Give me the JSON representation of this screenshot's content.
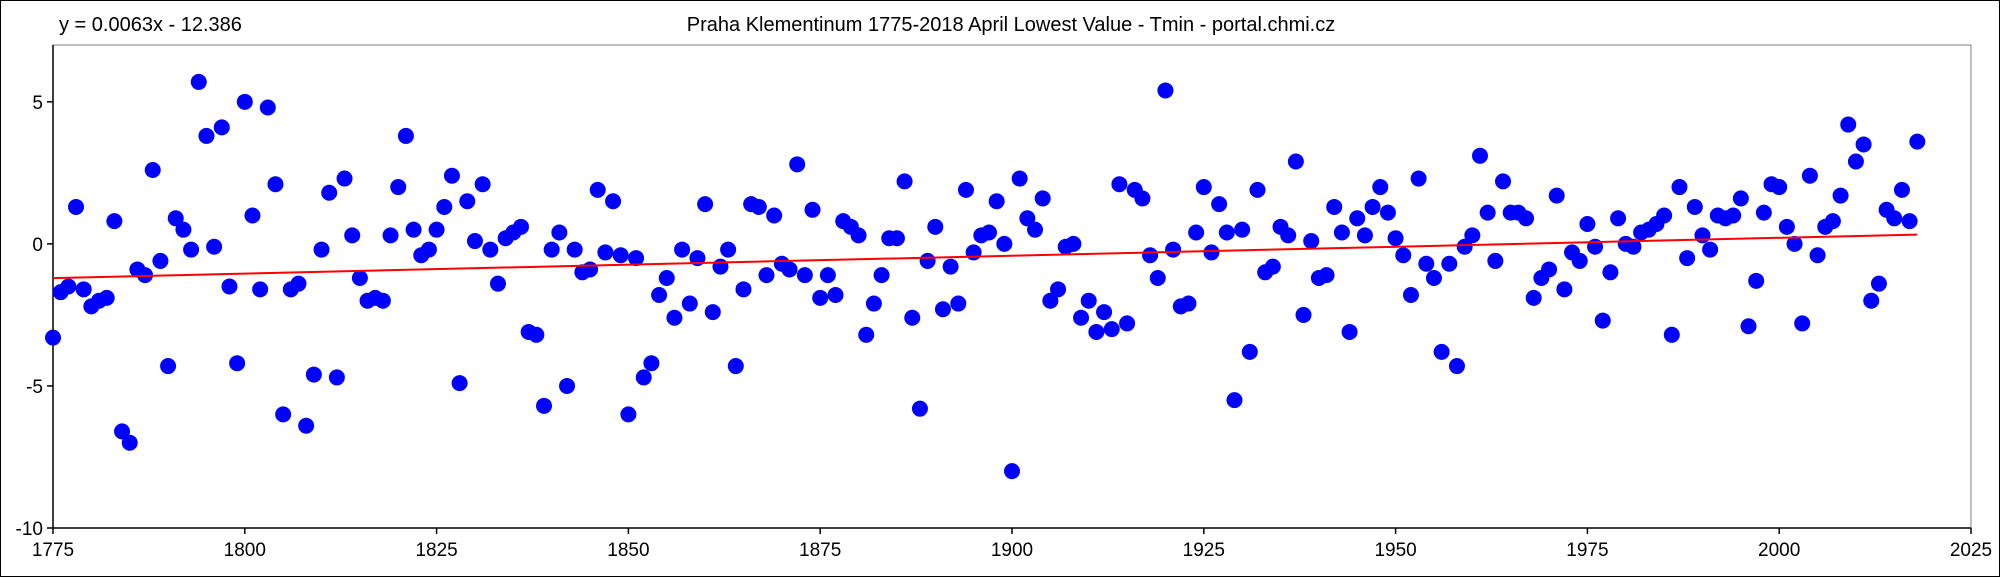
{
  "chart_data": {
    "type": "scatter",
    "title": "Praha Klementinum 1775-2018 April Lowest Value - Tmin - portal.chmi.cz",
    "equation": "y = 0.0063x - 12.386",
    "xlabel": "",
    "ylabel": "",
    "xlim": [
      1775,
      2025
    ],
    "ylim": [
      -10,
      7
    ],
    "xticks": [
      1775,
      1800,
      1825,
      1850,
      1875,
      1900,
      1925,
      1950,
      1975,
      2000,
      2025
    ],
    "yticks": [
      -10,
      -5,
      0,
      5
    ],
    "grid": false,
    "legend": "none",
    "colors": {
      "points": "#0000ff",
      "trendline": "#ff0000",
      "axes": "#000000"
    },
    "series": [
      {
        "x": [
          1775,
          1776,
          1777,
          1778,
          1779,
          1780,
          1781,
          1782,
          1783,
          1784,
          1785,
          1786,
          1787,
          1788,
          1789,
          1790,
          1791,
          1792,
          1793,
          1794,
          1795,
          1796,
          1797,
          1798,
          1799,
          1800,
          1801,
          1802,
          1803,
          1804,
          1805,
          1806,
          1807,
          1808,
          1809,
          1810,
          1811,
          1812,
          1813,
          1814,
          1815,
          1816,
          1817,
          1818,
          1819,
          1820,
          1821,
          1822,
          1823,
          1824,
          1825,
          1826,
          1827,
          1828,
          1829,
          1830,
          1831,
          1832,
          1833,
          1834,
          1835,
          1836,
          1837,
          1838,
          1839,
          1840,
          1841,
          1842,
          1843,
          1844,
          1845,
          1846,
          1847,
          1848,
          1849,
          1850,
          1851,
          1852,
          1853,
          1854,
          1855,
          1856,
          1857,
          1858,
          1859,
          1860,
          1861,
          1862,
          1863,
          1864,
          1865,
          1866,
          1867,
          1868,
          1869,
          1870,
          1871,
          1872,
          1873,
          1874,
          1875,
          1876,
          1877,
          1878,
          1879,
          1880,
          1881,
          1882,
          1883,
          1884,
          1885,
          1886,
          1887,
          1888,
          1889,
          1890,
          1891,
          1892,
          1893,
          1894,
          1895,
          1896,
          1897,
          1898,
          1899,
          1900,
          1901,
          1902,
          1903,
          1904,
          1905,
          1906,
          1907,
          1908,
          1909,
          1910,
          1911,
          1912,
          1913,
          1914,
          1915,
          1916,
          1917,
          1918,
          1919,
          1920,
          1921,
          1922,
          1923,
          1924,
          1925,
          1926,
          1927,
          1928,
          1929,
          1930,
          1931,
          1932,
          1933,
          1934,
          1935,
          1936,
          1937,
          1938,
          1939,
          1940,
          1941,
          1942,
          1943,
          1944,
          1945,
          1946,
          1947,
          1948,
          1949,
          1950,
          1951,
          1952,
          1953,
          1954,
          1955,
          1956,
          1957,
          1958,
          1959,
          1960,
          1961,
          1962,
          1963,
          1964,
          1965,
          1966,
          1967,
          1968,
          1969,
          1970,
          1971,
          1972,
          1973,
          1974,
          1975,
          1976,
          1977,
          1978,
          1979,
          1980,
          1981,
          1982,
          1983,
          1984,
          1985,
          1986,
          1987,
          1988,
          1989,
          1990,
          1991,
          1992,
          1993,
          1994,
          1995,
          1996,
          1997,
          1998,
          1999,
          2000,
          2001,
          2002,
          2003,
          2004,
          2005,
          2006,
          2007,
          2008,
          2009,
          2010,
          2011,
          2012,
          2013,
          2014,
          2015,
          2016,
          2017,
          2018
        ],
        "y": [
          -3.3,
          -1.7,
          -1.5,
          1.3,
          -1.6,
          -2.2,
          -2.0,
          -1.9,
          0.8,
          -6.6,
          -7.0,
          -0.9,
          -1.1,
          2.6,
          -0.6,
          -4.3,
          0.9,
          0.5,
          -0.2,
          5.7,
          3.8,
          -0.1,
          4.1,
          -1.5,
          -4.2,
          5.0,
          1.0,
          -1.6,
          4.8,
          2.1,
          -6.0,
          -1.6,
          -1.4,
          -6.4,
          -4.6,
          -0.2,
          1.8,
          -4.7,
          2.3,
          0.3,
          -1.2,
          -2.0,
          -1.9,
          -2.0,
          0.3,
          2.0,
          3.8,
          0.5,
          -0.4,
          -0.2,
          0.5,
          1.3,
          2.4,
          -4.9,
          1.5,
          0.1,
          2.1,
          -0.2,
          -1.4,
          0.2,
          0.4,
          0.6,
          -3.1,
          -3.2,
          -5.7,
          -0.2,
          0.4,
          -5.0,
          -0.2,
          -1.0,
          -0.9,
          1.9,
          -0.3,
          1.5,
          -0.4,
          -6.0,
          -0.5,
          -4.7,
          -4.2,
          -1.8,
          -1.2,
          -2.6,
          -0.2,
          -2.1,
          -0.5,
          1.4,
          -2.4,
          -0.8,
          -0.2,
          -4.3,
          -1.6,
          1.4,
          1.3,
          -1.1,
          1.0,
          -0.7,
          -0.9,
          2.8,
          -1.1,
          1.2,
          -1.9,
          -1.1,
          -1.8,
          0.8,
          0.6,
          0.3,
          -3.2,
          -2.1,
          -1.1,
          0.2,
          0.2,
          2.2,
          -2.6,
          -5.8,
          -0.6,
          0.6,
          -2.3,
          -0.8,
          -2.1,
          1.9,
          -0.3,
          0.3,
          0.4,
          1.5,
          0.0,
          -8.0,
          2.3,
          0.9,
          0.5,
          1.6,
          -2.0,
          -1.6,
          -0.1,
          0.0,
          -2.6,
          -2.0,
          -3.1,
          -2.4,
          -3.0,
          2.1,
          -2.8,
          1.9,
          1.6,
          -0.4,
          -1.2,
          5.4,
          -0.2,
          -2.2,
          -2.1,
          0.4,
          2.0,
          -0.3,
          1.4,
          0.4,
          -5.5,
          0.5,
          -3.8,
          1.9,
          -1.0,
          -0.8,
          0.6,
          0.3,
          2.9,
          -2.5,
          0.1,
          -1.2,
          -1.1,
          1.3,
          0.4,
          -3.1,
          0.9,
          0.3,
          1.3,
          2.0,
          1.1,
          0.2,
          -0.4,
          -1.8,
          2.3,
          -0.7,
          -1.2,
          -3.8,
          -0.7,
          -4.3,
          -0.1,
          0.3,
          3.1,
          1.1,
          -0.6,
          2.2,
          1.1,
          1.1,
          0.9,
          -1.9,
          -1.2,
          -0.9,
          1.7,
          -1.6,
          -0.3,
          -0.6,
          0.7,
          -0.1,
          -2.7,
          -1.0,
          0.9,
          0.0,
          -0.1,
          0.4,
          0.5,
          0.7,
          1.0,
          -3.2,
          2.0,
          -0.5,
          1.3,
          0.3,
          -0.2,
          1.0,
          0.9,
          1.0,
          1.6,
          -2.9,
          -1.3,
          1.1,
          2.1,
          2.0,
          0.6,
          0.0,
          -2.8,
          2.4,
          -0.4,
          0.6,
          0.8,
          1.7,
          4.2,
          2.9,
          3.5,
          -2.0,
          -1.4,
          1.2,
          0.9,
          1.9,
          0.8,
          3.6
        ]
      }
    ],
    "trendline": {
      "slope": 0.0063,
      "intercept": -12.386
    }
  }
}
